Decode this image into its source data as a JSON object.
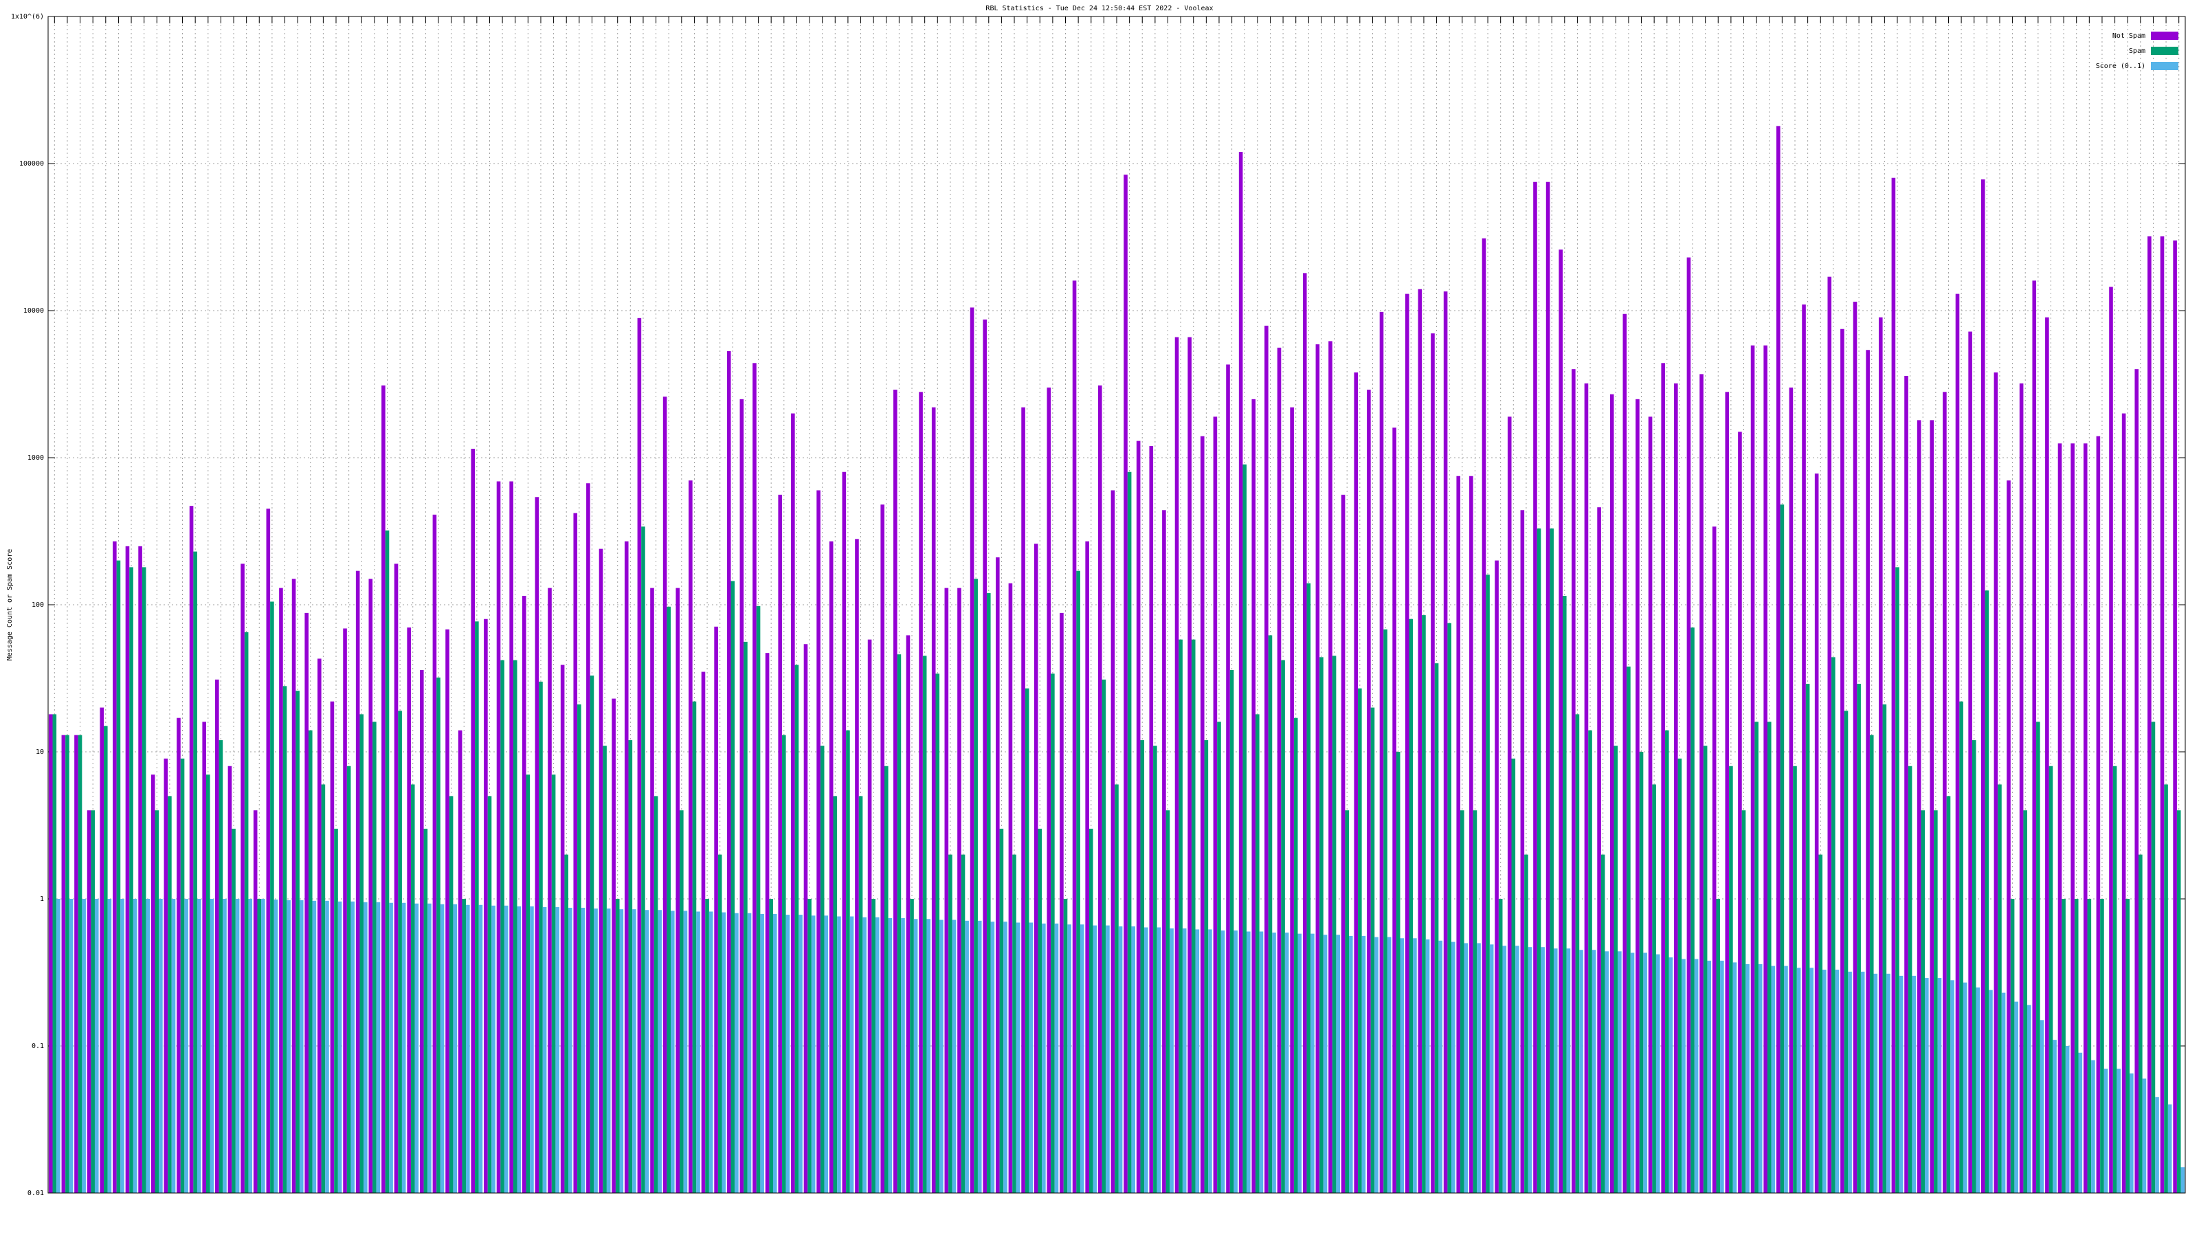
{
  "chart_data": {
    "type": "bar",
    "title": "RBL Statistics - Tue Dec 24 12:50:44 EST 2022 - Vooleax",
    "y_label": "Message Count or Spam Score",
    "log_scale_y": true,
    "grid": true,
    "legend": "top-right",
    "ylim": [
      0.01,
      1000000
    ],
    "yticks": [
      0.01,
      0.1,
      1,
      10,
      100,
      1000,
      10000,
      100000,
      {
        "value": 1000000,
        "label": "1x10^(6)"
      }
    ],
    "categories": [
      null,
      null,
      null,
      null,
      null,
      null,
      null,
      null,
      null,
      null,
      null,
      null,
      null,
      null,
      null,
      null,
      null,
      null,
      null,
      null,
      null,
      null,
      null,
      null,
      null,
      null,
      null,
      null,
      null,
      null,
      null,
      null,
      null,
      null,
      null,
      null,
      null,
      null,
      null,
      null,
      null,
      null,
      null,
      null,
      null,
      null,
      null,
      null,
      null,
      null,
      null,
      null,
      null,
      null,
      null,
      null,
      null,
      null,
      null,
      null,
      null,
      null,
      null,
      null,
      null,
      null,
      null,
      null,
      null,
      null,
      null,
      null,
      null,
      null,
      null,
      null,
      null,
      null,
      null,
      null,
      null,
      null,
      null,
      null,
      null,
      null,
      null,
      null,
      null,
      null,
      null,
      null,
      null,
      null,
      null,
      null,
      null,
      null,
      null,
      null,
      null,
      null,
      null,
      null,
      null,
      null,
      null,
      null,
      null,
      null,
      null,
      null,
      null,
      null,
      null,
      null,
      null,
      null,
      null,
      null,
      null,
      null,
      null,
      null,
      null,
      null,
      null,
      null,
      null,
      null,
      null,
      null,
      null,
      null,
      null,
      null,
      null,
      null,
      null,
      null,
      null,
      null,
      null,
      null,
      null,
      null,
      null,
      null,
      null,
      null,
      null,
      null,
      null,
      null,
      null,
      null,
      null,
      null,
      null,
      null,
      null,
      null,
      null,
      null,
      null,
      null,
      null
    ],
    "series": [
      {
        "name": "Not Spam",
        "color": "#9400d3",
        "values": [
          18,
          13,
          13,
          4,
          20,
          270,
          250,
          250,
          7,
          9,
          17,
          470,
          16,
          31,
          8,
          190,
          4,
          450,
          130,
          150,
          88,
          43,
          22,
          69,
          170,
          150,
          3100,
          190,
          70,
          36,
          410,
          68,
          14,
          1150,
          80,
          690,
          690,
          115,
          540,
          130,
          39,
          420,
          670,
          240,
          23,
          270,
          8900,
          130,
          2600,
          130,
          700,
          35,
          71,
          5300,
          2500,
          4400,
          47,
          560,
          2000,
          54,
          600,
          270,
          800,
          280,
          58,
          480,
          2900,
          62,
          2800,
          2200,
          130,
          130,
          10500,
          8700,
          210,
          140,
          2200,
          260,
          3000,
          88,
          16000,
          270,
          3100,
          600,
          84000,
          1300,
          1200,
          440,
          6600,
          6600,
          1400,
          1900,
          4300,
          120000,
          2500,
          7900,
          5600,
          2200,
          18000,
          5900,
          6200,
          560,
          3800,
          2900,
          9800,
          1600,
          13000,
          14000,
          7000,
          13500,
          750,
          750,
          31000,
          200,
          1900,
          440,
          75000,
          75000,
          26000,
          4000,
          3200,
          460,
          2700,
          9500,
          2500,
          1900,
          4400,
          3200,
          23000,
          3700,
          340,
          2800,
          1500,
          5800,
          5800,
          180000,
          3000,
          11000,
          780,
          17000,
          7500,
          11500,
          5400,
          9000,
          80000,
          3600,
          1800,
          1800,
          2800,
          13000,
          7200,
          78000,
          3800,
          700,
          3200,
          16000,
          9000,
          1250,
          1250,
          1250,
          1400,
          14500,
          2000,
          4000,
          32000,
          32000,
          30000
        ]
      },
      {
        "name": "Spam",
        "color": "#009e73",
        "values": [
          18,
          13,
          13,
          4,
          15,
          200,
          180,
          180,
          4,
          5,
          9,
          230,
          7,
          12,
          3,
          65,
          1,
          105,
          28,
          26,
          14,
          6,
          3,
          8,
          18,
          16,
          320,
          19,
          6,
          3,
          32,
          5,
          1,
          77,
          5,
          42,
          42,
          7,
          30,
          7,
          2,
          21,
          33,
          11,
          1,
          12,
          340,
          5,
          97,
          4,
          22,
          1,
          2,
          145,
          56,
          98,
          1,
          13,
          39,
          1,
          11,
          5,
          14,
          5,
          1,
          8,
          46,
          1,
          45,
          34,
          2,
          2,
          150,
          120,
          3,
          2,
          27,
          3,
          34,
          1,
          170,
          3,
          31,
          6,
          800,
          12,
          11,
          4,
          58,
          58,
          12,
          16,
          36,
          900,
          18,
          62,
          42,
          17,
          140,
          44,
          45,
          4,
          27,
          20,
          68,
          10,
          80,
          85,
          40,
          75,
          4,
          4,
          160,
          1,
          9,
          2,
          330,
          330,
          115,
          18,
          14,
          2,
          11,
          38,
          10,
          6,
          14,
          9,
          70,
          11,
          1,
          8,
          4,
          16,
          16,
          480,
          8,
          29,
          2,
          44,
          19,
          29,
          13,
          21,
          180,
          8,
          4,
          4,
          5,
          22,
          12,
          125,
          6,
          1,
          4,
          16,
          8,
          1,
          1,
          1,
          1,
          8,
          1,
          2,
          16,
          6,
          4
        ]
      },
      {
        "name": "Score (0..1)",
        "color": "#56b4e9",
        "values": [
          1,
          1,
          1,
          1,
          1,
          1,
          1,
          1,
          1,
          1,
          1,
          1,
          1,
          1,
          1,
          1,
          1,
          0.99,
          0.98,
          0.98,
          0.97,
          0.97,
          0.96,
          0.96,
          0.95,
          0.95,
          0.94,
          0.94,
          0.93,
          0.93,
          0.92,
          0.92,
          0.91,
          0.91,
          0.9,
          0.9,
          0.89,
          0.89,
          0.88,
          0.88,
          0.87,
          0.87,
          0.86,
          0.86,
          0.85,
          0.85,
          0.84,
          0.84,
          0.83,
          0.83,
          0.82,
          0.82,
          0.81,
          0.8,
          0.8,
          0.79,
          0.79,
          0.78,
          0.78,
          0.77,
          0.77,
          0.76,
          0.76,
          0.75,
          0.75,
          0.74,
          0.74,
          0.73,
          0.73,
          0.72,
          0.72,
          0.71,
          0.71,
          0.7,
          0.7,
          0.69,
          0.69,
          0.68,
          0.68,
          0.67,
          0.67,
          0.66,
          0.66,
          0.65,
          0.65,
          0.64,
          0.64,
          0.63,
          0.63,
          0.62,
          0.62,
          0.61,
          0.61,
          0.6,
          0.6,
          0.59,
          0.59,
          0.58,
          0.58,
          0.57,
          0.57,
          0.56,
          0.56,
          0.55,
          0.55,
          0.54,
          0.54,
          0.53,
          0.52,
          0.51,
          0.5,
          0.5,
          0.49,
          0.48,
          0.48,
          0.47,
          0.47,
          0.46,
          0.46,
          0.45,
          0.45,
          0.44,
          0.44,
          0.43,
          0.43,
          0.42,
          0.4,
          0.39,
          0.39,
          0.38,
          0.38,
          0.37,
          0.36,
          0.36,
          0.35,
          0.35,
          0.34,
          0.34,
          0.33,
          0.33,
          0.32,
          0.32,
          0.31,
          0.31,
          0.3,
          0.3,
          0.29,
          0.29,
          0.28,
          0.27,
          0.25,
          0.24,
          0.23,
          0.2,
          0.19,
          0.15,
          0.11,
          0.1,
          0.09,
          0.08,
          0.07,
          0.07,
          0.065,
          0.06,
          0.045,
          0.04,
          0.015
        ]
      }
    ]
  }
}
